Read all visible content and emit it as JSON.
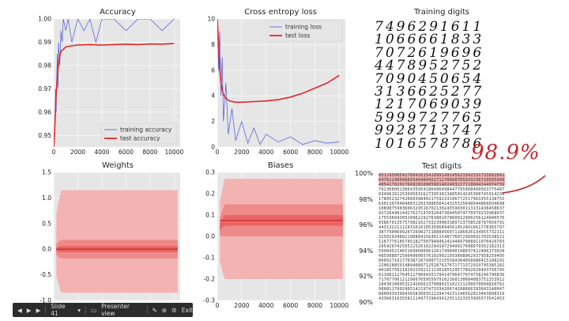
{
  "chart_data": [
    {
      "type": "line",
      "title": "Accuracy",
      "xlim": [
        0,
        10500
      ],
      "ylim": [
        0.945,
        1.0
      ],
      "x_ticks": [
        "0",
        "2000",
        "4000",
        "6000",
        "8000",
        "10000"
      ],
      "y_ticks": [
        "1.00",
        "0.99",
        "0.98",
        "0.97",
        "0.96",
        "0.95"
      ],
      "series": [
        {
          "name": "training accuracy",
          "color": "#4a57d8",
          "x": [
            0,
            100,
            150,
            200,
            250,
            300,
            350,
            400,
            500,
            600,
            700,
            800,
            1000,
            1200,
            1500,
            2000,
            2500,
            3000,
            3500,
            4000,
            5000,
            6000,
            7000,
            8000,
            9000,
            10000
          ],
          "values": [
            0.945,
            0.955,
            0.97,
            0.96,
            0.975,
            0.985,
            0.97,
            0.99,
            0.98,
            0.995,
            0.99,
            1.0,
            0.995,
            1.0,
            0.99,
            1.0,
            0.995,
            1.0,
            0.99,
            1.0,
            1.0,
            0.995,
            1.0,
            1.0,
            0.995,
            1.0
          ]
        },
        {
          "name": "test accuracy",
          "color": "#e3262b",
          "x": [
            0,
            100,
            200,
            300,
            400,
            500,
            600,
            800,
            1000,
            1500,
            2000,
            3000,
            4000,
            5000,
            6000,
            7000,
            8000,
            9000,
            10000
          ],
          "values": [
            0.945,
            0.955,
            0.968,
            0.975,
            0.981,
            0.984,
            0.986,
            0.987,
            0.988,
            0.9885,
            0.9888,
            0.989,
            0.9888,
            0.989,
            0.9892,
            0.989,
            0.9893,
            0.9892,
            0.9895
          ]
        }
      ],
      "legend_position": "lower-right"
    },
    {
      "type": "line",
      "title": "Cross entropy loss",
      "xlim": [
        0,
        10500
      ],
      "ylim": [
        0,
        10
      ],
      "x_ticks": [
        "0",
        "2000",
        "4000",
        "6000",
        "8000",
        "10000"
      ],
      "y_ticks": [
        "10",
        "8",
        "6",
        "4",
        "2",
        "0"
      ],
      "series": [
        {
          "name": "training loss",
          "color": "#4a57d8",
          "x": [
            0,
            100,
            200,
            300,
            400,
            500,
            700,
            900,
            1200,
            1500,
            2000,
            2500,
            3000,
            3500,
            4000,
            5000,
            6000,
            7000,
            8000,
            9000,
            10000
          ],
          "values": [
            10,
            6,
            9,
            4,
            7,
            2,
            5,
            1,
            3,
            0.5,
            2,
            0.3,
            1.5,
            0.2,
            1,
            0.4,
            0.8,
            0.2,
            0.5,
            0.3,
            0.4
          ]
        },
        {
          "name": "test loss",
          "color": "#e3262b",
          "x": [
            0,
            100,
            200,
            300,
            400,
            500,
            700,
            1000,
            1500,
            2000,
            3000,
            4000,
            5000,
            6000,
            7000,
            8000,
            9000,
            10000
          ],
          "values": [
            10,
            8,
            6,
            5,
            4.5,
            4.1,
            3.8,
            3.6,
            3.5,
            3.5,
            3.55,
            3.6,
            3.7,
            3.9,
            4.2,
            4.6,
            5.0,
            5.6
          ]
        }
      ],
      "legend_position": "top-right"
    },
    {
      "type": "area",
      "title": "Weights",
      "xlim": [
        0,
        10500
      ],
      "ylim": [
        -1.0,
        1.5
      ],
      "x_ticks": [
        "0",
        "2000",
        "4000",
        "6000",
        "8000",
        "10000"
      ],
      "y_ticks": [
        "1.5",
        "1.0",
        "0.5",
        "0.0",
        "-0.5",
        "-1.0"
      ],
      "bands": [
        {
          "upper": 1.15,
          "lower": -0.85,
          "color": "#f4b3b3"
        },
        {
          "upper": 0.18,
          "lower": -0.18,
          "color": "#ef8a8a"
        },
        {
          "upper": 0.06,
          "lower": -0.06,
          "color": "#e96565"
        }
      ],
      "median": 0.0
    },
    {
      "type": "area",
      "title": "Biases",
      "xlim": [
        0,
        10500
      ],
      "ylim": [
        -0.3,
        0.3
      ],
      "x_ticks": [
        "0",
        "2000",
        "4000",
        "6000",
        "8000",
        "10000"
      ],
      "y_ticks": [
        "0.3",
        "0.2",
        "0.1",
        "0.0",
        "-0.1",
        "-0.2",
        "-0.3"
      ],
      "bands": [
        {
          "upper": 0.27,
          "lower": -0.2,
          "color": "#f4b3b3"
        },
        {
          "upper": 0.15,
          "lower": 0.0,
          "color": "#ef8a8a"
        },
        {
          "upper": 0.1,
          "lower": 0.05,
          "color": "#e96565"
        }
      ],
      "median": 0.075
    }
  ],
  "training_digits": {
    "title": "Training digits",
    "rows": [
      "7496291611",
      "1066661833",
      "7072619696",
      "4478952752",
      "7090450654",
      "3136625277",
      "1217069039",
      "5999727765",
      "9928713747",
      "1016578786"
    ]
  },
  "test_digits": {
    "title": "Test digits",
    "pct_labels": [
      "100%",
      "98%",
      "96%",
      "94%",
      "92%",
      "90%"
    ]
  },
  "annotation": "98.9%",
  "toolbar": {
    "slide_label": "Slide 41",
    "presenter_label": "Presenter view",
    "exit_label": "Exit"
  }
}
